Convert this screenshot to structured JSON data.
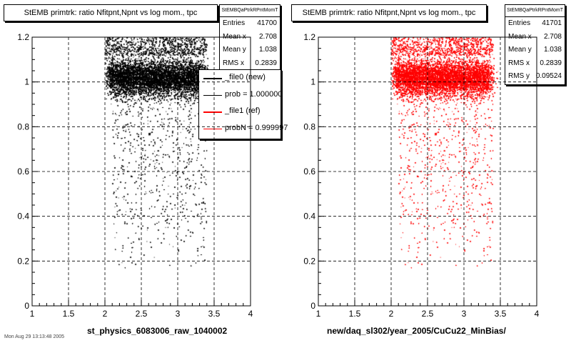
{
  "colors": {
    "ref": "#000000",
    "new": "#ff0000",
    "grid": "#000000",
    "background": "#ffffff"
  },
  "footer": "Mon Aug 29 13:13:48 2005",
  "legend": [
    {
      "label": "_file0 (new)",
      "color": "#000000"
    },
    {
      "label": "prob = 1.000000",
      "color": "#000000"
    },
    {
      "label": "_file1 (ref)",
      "color": "#ff0000"
    },
    {
      "label": "probN = 0.999997",
      "color": "#ff0000"
    }
  ],
  "chart_data": [
    {
      "type": "scatter",
      "title": "StEMB primtrk: ratio Nfitpnt,Npnt vs log mom., tpc",
      "xlabel": "st_physics_6083006_raw_1040002",
      "ylabel": "",
      "xlim": [
        1,
        4
      ],
      "ylim": [
        0,
        1.2
      ],
      "xticks": [
        "1",
        "1.5",
        "2",
        "2.5",
        "3",
        "3.5",
        "4"
      ],
      "yticks": [
        "0",
        "0.2",
        "0.4",
        "0.6",
        "0.8",
        "1",
        "1.2"
      ],
      "grid": true,
      "marker_color": "#000000",
      "stats": {
        "name": "StEMBQaPtrkRPntMomT",
        "rows": [
          {
            "label": "Entries",
            "value": "41700"
          },
          {
            "label": "Mean x",
            "value": "2.708"
          },
          {
            "label": "Mean y",
            "value": "1.038"
          },
          {
            "label": "RMS x",
            "value": "0.2839"
          }
        ]
      },
      "distribution": {
        "x_range": [
          2.0,
          3.5
        ],
        "y_band": [
          0.94,
          1.08
        ],
        "y_band_center": 1.02,
        "upper_band": [
          1.12,
          1.2
        ],
        "sparse_y_min": 0.17,
        "points": 41700
      }
    },
    {
      "type": "scatter",
      "title": "StEMB primtrk: ratio Nfitpnt,Npnt vs log mom., tpc",
      "xlabel": "new/daq_sl302/year_2005/CuCu22_MinBias/",
      "ylabel": "",
      "xlim": [
        1,
        4
      ],
      "ylim": [
        0,
        1.2
      ],
      "xticks": [
        "1",
        "1.5",
        "2",
        "2.5",
        "3",
        "3.5",
        "4"
      ],
      "yticks": [
        "0",
        "0.2",
        "0.4",
        "0.6",
        "0.8",
        "1",
        "1.2"
      ],
      "grid": true,
      "marker_color": "#ff0000",
      "stats": {
        "name": "StEMBQaPtrkRPntMomT",
        "rows": [
          {
            "label": "Entries",
            "value": "41701"
          },
          {
            "label": "Mean x",
            "value": "2.708"
          },
          {
            "label": "Mean y",
            "value": "1.038"
          },
          {
            "label": "RMS x",
            "value": "0.2839"
          },
          {
            "label": "RMS y",
            "value": "0.09524"
          }
        ]
      },
      "distribution": {
        "x_range": [
          2.0,
          3.5
        ],
        "y_band": [
          0.94,
          1.08
        ],
        "y_band_center": 1.02,
        "upper_band": [
          1.12,
          1.2
        ],
        "sparse_y_min": 0.17,
        "points": 41701
      }
    }
  ]
}
